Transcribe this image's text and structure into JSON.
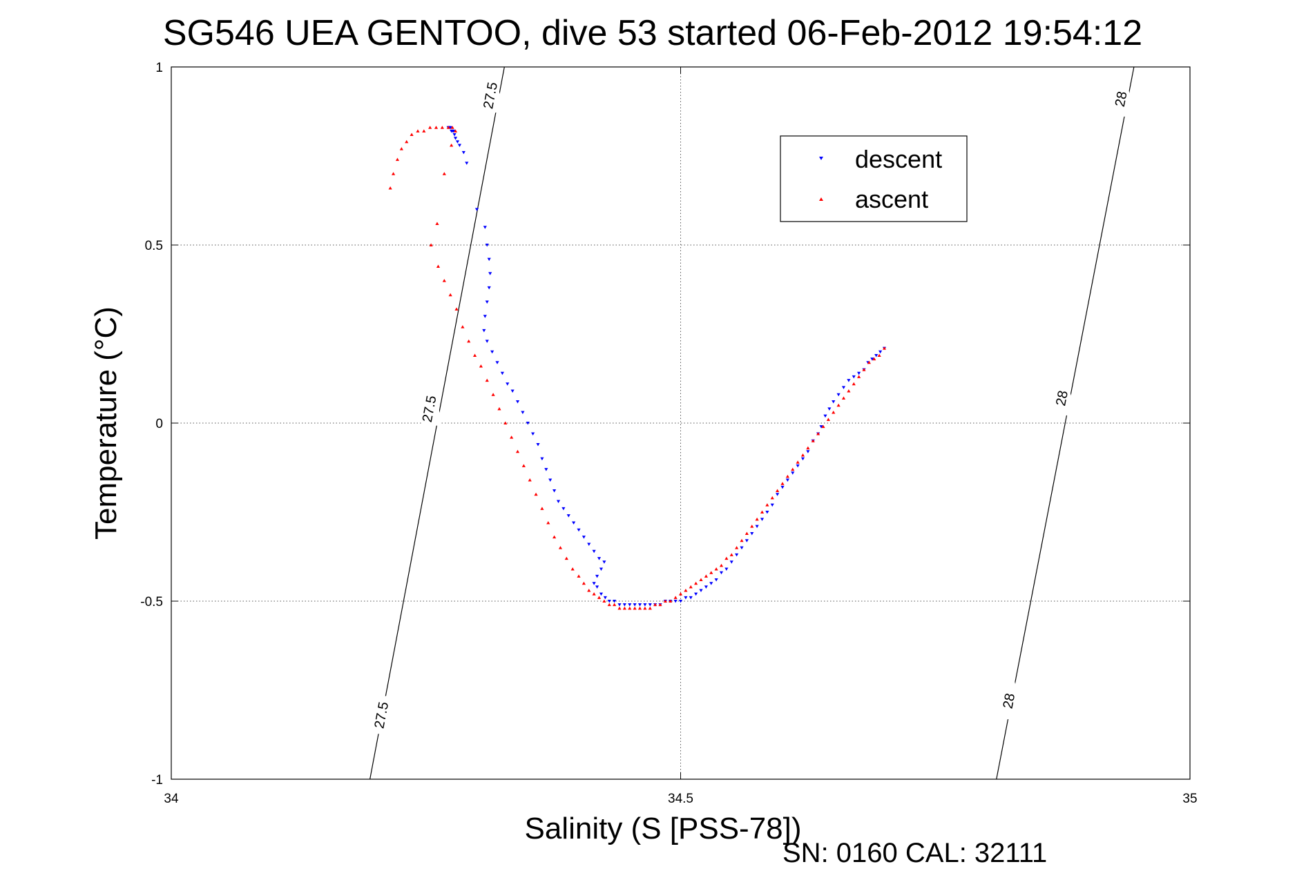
{
  "chart_data": {
    "type": "scatter",
    "title": "SG546 UEA GENTOO, dive 53 started 06-Feb-2012 19:54:12",
    "xlabel": "Salinity (S [PSS-78])",
    "ylabel": "Temperature (°C)",
    "footer": "SN: 0160  CAL: 32111",
    "xlim": [
      34,
      35
    ],
    "ylim": [
      -1,
      1
    ],
    "xticks": [
      34,
      34.5,
      35
    ],
    "xtick_labels": [
      "34",
      "34.5",
      "35"
    ],
    "yticks": [
      -1,
      -0.5,
      0,
      0.5,
      1
    ],
    "ytick_labels": [
      "-1",
      "-0.5",
      "0",
      "0.5",
      "1"
    ],
    "grid": true,
    "legend_position": "top-right",
    "isopycnals": [
      {
        "label": "27.5",
        "x": [
          34.195,
          34.327
        ],
        "y": [
          -1,
          1
        ],
        "label_points": [
          {
            "x": 34.206,
            "y": -0.82
          },
          {
            "x": 34.253,
            "y": 0.04
          },
          {
            "x": 34.313,
            "y": 0.92
          }
        ]
      },
      {
        "label": "28",
        "x": [
          34.81,
          34.945
        ],
        "y": [
          -1,
          1
        ],
        "label_points": [
          {
            "x": 34.822,
            "y": -0.78
          },
          {
            "x": 34.874,
            "y": 0.07
          },
          {
            "x": 34.932,
            "y": 0.91
          }
        ]
      }
    ],
    "series": [
      {
        "name": "descent",
        "color": "#0000ff",
        "marker": "triangle-down",
        "x": [
          34.272,
          34.273,
          34.274,
          34.275,
          34.276,
          34.277,
          34.278,
          34.279,
          34.281,
          34.283,
          34.287,
          34.29,
          34.3,
          34.308,
          34.31,
          34.312,
          34.313,
          34.312,
          34.31,
          34.308,
          34.307,
          34.31,
          34.315,
          34.32,
          34.325,
          34.33,
          34.335,
          34.34,
          34.345,
          34.35,
          34.355,
          34.36,
          34.364,
          34.368,
          34.372,
          34.376,
          34.38,
          34.385,
          34.39,
          34.395,
          34.4,
          34.405,
          34.41,
          34.415,
          34.42,
          34.425,
          34.422,
          34.418,
          34.415,
          34.418,
          34.422,
          34.426,
          34.43,
          34.435,
          34.44,
          34.445,
          34.45,
          34.455,
          34.46,
          34.465,
          34.47,
          34.475,
          34.48,
          34.485,
          34.49,
          34.495,
          34.5,
          34.505,
          34.51,
          34.515,
          34.52,
          34.525,
          34.53,
          34.535,
          34.54,
          34.545,
          34.55,
          34.555,
          34.56,
          34.565,
          34.57,
          34.575,
          34.58,
          34.585,
          34.59,
          34.595,
          34.6,
          34.605,
          34.61,
          34.615,
          34.62,
          34.625,
          34.63,
          34.635,
          34.638,
          34.642,
          34.646,
          34.65,
          34.655,
          34.66,
          34.665,
          34.67,
          34.675,
          34.68,
          34.684,
          34.688,
          34.692,
          34.696,
          34.7
        ],
        "y": [
          0.83,
          0.83,
          0.83,
          0.82,
          0.82,
          0.82,
          0.81,
          0.8,
          0.79,
          0.78,
          0.76,
          0.73,
          0.6,
          0.55,
          0.5,
          0.46,
          0.42,
          0.38,
          0.34,
          0.3,
          0.26,
          0.23,
          0.2,
          0.17,
          0.14,
          0.11,
          0.09,
          0.06,
          0.03,
          0.0,
          -0.03,
          -0.06,
          -0.1,
          -0.13,
          -0.16,
          -0.19,
          -0.22,
          -0.24,
          -0.26,
          -0.28,
          -0.3,
          -0.32,
          -0.34,
          -0.36,
          -0.38,
          -0.39,
          -0.41,
          -0.43,
          -0.45,
          -0.46,
          -0.48,
          -0.49,
          -0.5,
          -0.5,
          -0.51,
          -0.51,
          -0.51,
          -0.51,
          -0.51,
          -0.51,
          -0.51,
          -0.51,
          -0.51,
          -0.5,
          -0.5,
          -0.5,
          -0.5,
          -0.49,
          -0.49,
          -0.48,
          -0.47,
          -0.46,
          -0.45,
          -0.44,
          -0.42,
          -0.41,
          -0.39,
          -0.37,
          -0.35,
          -0.33,
          -0.31,
          -0.29,
          -0.27,
          -0.25,
          -0.23,
          -0.2,
          -0.18,
          -0.16,
          -0.14,
          -0.12,
          -0.1,
          -0.08,
          -0.05,
          -0.03,
          -0.01,
          0.02,
          0.04,
          0.06,
          0.08,
          0.1,
          0.12,
          0.13,
          0.14,
          0.15,
          0.17,
          0.18,
          0.19,
          0.2,
          0.21
        ]
      },
      {
        "name": "ascent",
        "color": "#ff0000",
        "marker": "triangle-up",
        "x": [
          34.215,
          34.218,
          34.222,
          34.226,
          34.231,
          34.236,
          34.242,
          34.248,
          34.254,
          34.26,
          34.266,
          34.272,
          34.276,
          34.279,
          34.275,
          34.268,
          34.261,
          34.255,
          34.262,
          34.268,
          34.274,
          34.28,
          34.286,
          34.292,
          34.298,
          34.304,
          34.31,
          34.316,
          34.322,
          34.328,
          34.334,
          34.34,
          34.346,
          34.352,
          34.358,
          34.364,
          34.37,
          34.376,
          34.382,
          34.388,
          34.394,
          34.4,
          34.405,
          34.41,
          34.415,
          34.42,
          34.425,
          34.43,
          34.435,
          34.44,
          34.445,
          34.45,
          34.455,
          34.46,
          34.465,
          34.47,
          34.475,
          34.48,
          34.485,
          34.49,
          34.495,
          34.5,
          34.505,
          34.51,
          34.515,
          34.52,
          34.525,
          34.53,
          34.535,
          34.54,
          34.545,
          34.55,
          34.555,
          34.56,
          34.565,
          34.57,
          34.575,
          34.58,
          34.585,
          34.59,
          34.595,
          34.6,
          34.605,
          34.61,
          34.615,
          34.62,
          34.625,
          34.63,
          34.635,
          34.64,
          34.645,
          34.65,
          34.655,
          34.66,
          34.665,
          34.67,
          34.675,
          34.68,
          34.685,
          34.69,
          34.695,
          34.7
        ],
        "y": [
          0.66,
          0.7,
          0.74,
          0.77,
          0.79,
          0.81,
          0.82,
          0.82,
          0.83,
          0.83,
          0.83,
          0.83,
          0.83,
          0.82,
          0.78,
          0.7,
          0.56,
          0.5,
          0.44,
          0.4,
          0.36,
          0.32,
          0.27,
          0.23,
          0.19,
          0.16,
          0.12,
          0.08,
          0.04,
          0.0,
          -0.04,
          -0.08,
          -0.12,
          -0.16,
          -0.2,
          -0.24,
          -0.28,
          -0.32,
          -0.35,
          -0.38,
          -0.41,
          -0.43,
          -0.45,
          -0.47,
          -0.48,
          -0.49,
          -0.5,
          -0.51,
          -0.51,
          -0.52,
          -0.52,
          -0.52,
          -0.52,
          -0.52,
          -0.52,
          -0.52,
          -0.51,
          -0.51,
          -0.5,
          -0.5,
          -0.49,
          -0.48,
          -0.47,
          -0.46,
          -0.45,
          -0.44,
          -0.43,
          -0.42,
          -0.41,
          -0.4,
          -0.38,
          -0.37,
          -0.35,
          -0.33,
          -0.31,
          -0.29,
          -0.27,
          -0.25,
          -0.23,
          -0.21,
          -0.19,
          -0.17,
          -0.15,
          -0.13,
          -0.11,
          -0.09,
          -0.07,
          -0.05,
          -0.03,
          -0.01,
          0.01,
          0.03,
          0.05,
          0.07,
          0.09,
          0.11,
          0.13,
          0.15,
          0.17,
          0.18,
          0.19,
          0.21
        ]
      }
    ]
  }
}
